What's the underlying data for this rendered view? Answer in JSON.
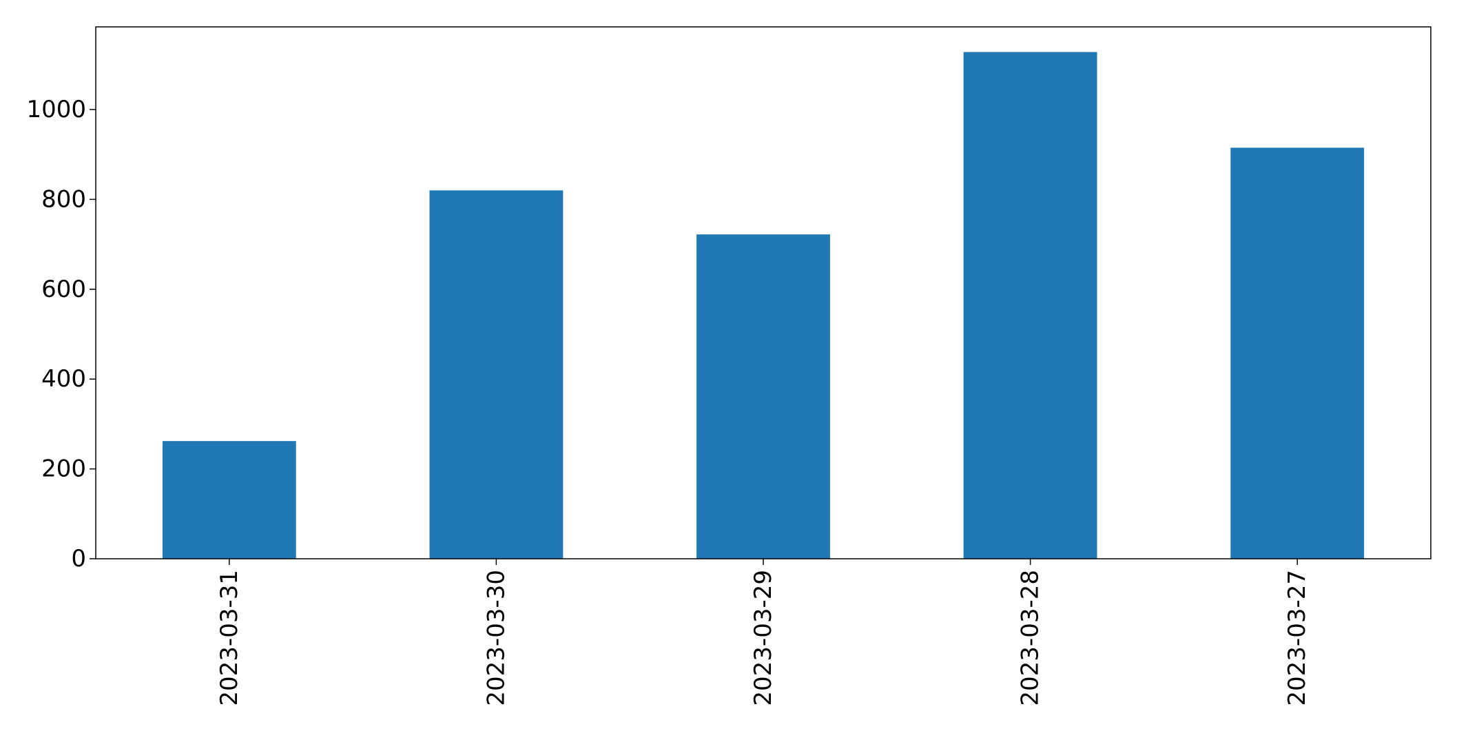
{
  "chart_data": {
    "type": "bar",
    "categories": [
      "2023-03-31",
      "2023-03-30",
      "2023-03-29",
      "2023-03-28",
      "2023-03-27"
    ],
    "values": [
      262,
      820,
      722,
      1128,
      915
    ],
    "title": "",
    "xlabel": "",
    "ylabel": "",
    "ylim": [
      0,
      1184
    ],
    "yticks": [
      0,
      200,
      400,
      600,
      800,
      1000
    ],
    "grid": false,
    "legend": "none",
    "bar_color": "#1f77b4",
    "axis_color": "#000000"
  }
}
